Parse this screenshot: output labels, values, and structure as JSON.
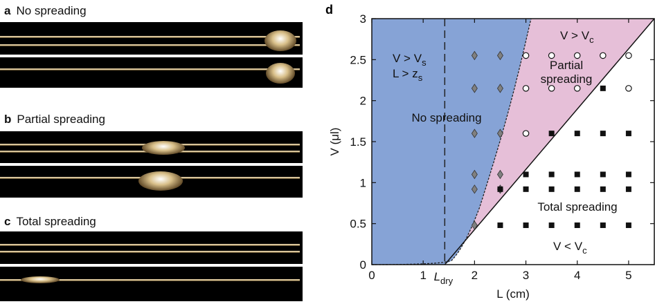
{
  "panels": {
    "a": {
      "letter": "a",
      "title": "No spreading"
    },
    "b": {
      "letter": "b",
      "title": "Partial spreading"
    },
    "c": {
      "letter": "c",
      "title": "Total spreading"
    },
    "d": {
      "letter": "d"
    }
  },
  "chart_data": {
    "type": "scatter",
    "xlabel": "L (cm)",
    "ylabel": "V (μl)",
    "xlim": [
      0,
      5.5
    ],
    "ylim": [
      0,
      3
    ],
    "xticks": [
      0,
      1,
      2,
      3,
      4,
      5
    ],
    "yticks": [
      0,
      0.5,
      1,
      1.5,
      2,
      2.5,
      3
    ],
    "L_dry_label": "Ldry",
    "L_dry": 1.42,
    "colors": {
      "no_spreading": "#86a3d6",
      "partial_spreading": "#e6bfd8",
      "total_spreading": "#ffffff",
      "diamond": "#808080",
      "square": "#111111"
    },
    "regions": [
      {
        "name": "No spreading",
        "lines": [
          "No spreading"
        ]
      },
      {
        "name": "V > Vs L > zs",
        "lines": [
          "V > Vs",
          "L > zs"
        ]
      },
      {
        "name": "V > Vc",
        "lines": [
          "V > Vc"
        ]
      },
      {
        "name": "Partial spreading",
        "lines": [
          "Partial",
          "spreading"
        ]
      },
      {
        "name": "Total spreading",
        "lines": [
          "Total spreading"
        ]
      },
      {
        "name": "V < Vc",
        "lines": [
          "V < Vc"
        ]
      }
    ],
    "series": [
      {
        "marker": "diamond",
        "points": [
          [
            2,
            2.55
          ],
          [
            2.5,
            2.55
          ],
          [
            2,
            2.15
          ],
          [
            2.5,
            2.15
          ],
          [
            2,
            1.6
          ],
          [
            2.5,
            1.6
          ],
          [
            2,
            1.1
          ],
          [
            2.5,
            1.1
          ],
          [
            2,
            0.92
          ],
          [
            2.5,
            0.92
          ],
          [
            2,
            0.48
          ]
        ]
      },
      {
        "marker": "circle",
        "points": [
          [
            3,
            2.55
          ],
          [
            3.5,
            2.55
          ],
          [
            4,
            2.55
          ],
          [
            4.5,
            2.55
          ],
          [
            5,
            2.55
          ],
          [
            3,
            2.15
          ],
          [
            3.5,
            2.15
          ],
          [
            4,
            2.15
          ],
          [
            5,
            2.15
          ],
          [
            3,
            1.6
          ]
        ]
      },
      {
        "marker": "square",
        "points": [
          [
            4.5,
            2.15
          ],
          [
            3.5,
            1.6
          ],
          [
            4,
            1.6
          ],
          [
            4.5,
            1.6
          ],
          [
            5,
            1.6
          ],
          [
            3,
            1.1
          ],
          [
            3.5,
            1.1
          ],
          [
            4,
            1.1
          ],
          [
            4.5,
            1.1
          ],
          [
            5,
            1.1
          ],
          [
            2.5,
            0.92
          ],
          [
            3,
            0.92
          ],
          [
            3.5,
            0.92
          ],
          [
            4,
            0.92
          ],
          [
            4.5,
            0.92
          ],
          [
            5,
            0.92
          ],
          [
            2.5,
            0.48
          ],
          [
            3,
            0.48
          ],
          [
            3.5,
            0.48
          ],
          [
            4,
            0.48
          ],
          [
            4.5,
            0.48
          ],
          [
            5,
            0.48
          ]
        ]
      }
    ]
  }
}
